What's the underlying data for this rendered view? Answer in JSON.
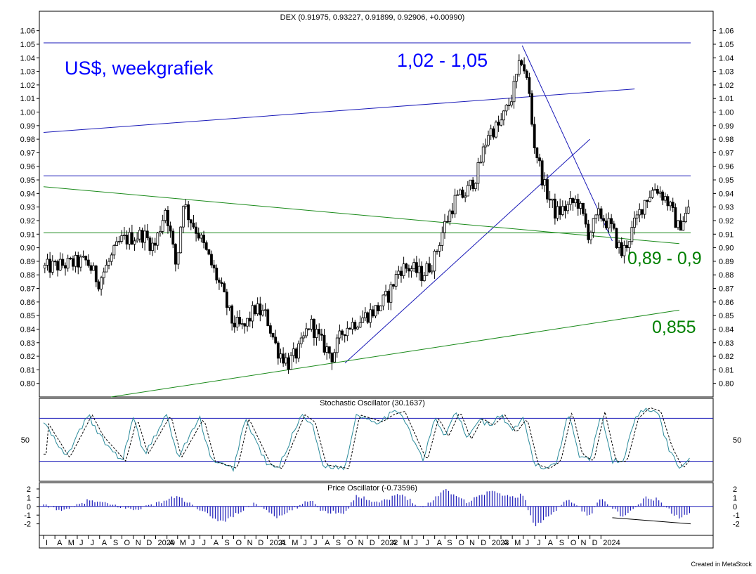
{
  "chart_data": {
    "type": "candlestick",
    "title": "DEX (0.91975, 0.93227, 0.91899, 0.92906, +0.00990)",
    "ylim": [
      0.79,
      1.065
    ],
    "y_ticks": [
      "1.06",
      "1.05",
      "1.04",
      "1.03",
      "1.02",
      "1.01",
      "1.00",
      "0.99",
      "0.98",
      "0.97",
      "0.96",
      "0.95",
      "0.94",
      "0.93",
      "0.92",
      "0.91",
      "0.90",
      "0.89",
      "0.88",
      "0.87",
      "0.86",
      "0.85",
      "0.84",
      "0.83",
      "0.82",
      "0.81",
      "0.80"
    ],
    "x_ticks": [
      "I",
      "A",
      "M",
      "J",
      "J",
      "A",
      "S",
      "O",
      "N",
      "D",
      "2020",
      "A",
      "M",
      "J",
      "J",
      "A",
      "S",
      "O",
      "N",
      "D",
      "2021",
      "A",
      "M",
      "J",
      "J",
      "A",
      "S",
      "O",
      "N",
      "D",
      "2022",
      "A",
      "M",
      "J",
      "J",
      "A",
      "S",
      "O",
      "N",
      "D",
      "2023",
      "A",
      "M",
      "J",
      "J",
      "A",
      "S",
      "O",
      "N",
      "D",
      "2024"
    ],
    "x_range": [
      "2019-03",
      "2024-01"
    ],
    "price_anchors": [
      {
        "t": "2019-03",
        "v": 0.885
      },
      {
        "t": "2019-07",
        "v": 0.89
      },
      {
        "t": "2019-08",
        "v": 0.875
      },
      {
        "t": "2019-10",
        "v": 0.905
      },
      {
        "t": "2019-12",
        "v": 0.91
      },
      {
        "t": "2020-01",
        "v": 0.9
      },
      {
        "t": "2020-02",
        "v": 0.93
      },
      {
        "t": "2020-03",
        "v": 0.885
      },
      {
        "t": "2020-03-20",
        "v": 0.935
      },
      {
        "t": "2020-04",
        "v": 0.925
      },
      {
        "t": "2020-05",
        "v": 0.91
      },
      {
        "t": "2020-06",
        "v": 0.89
      },
      {
        "t": "2020-07",
        "v": 0.87
      },
      {
        "t": "2020-08",
        "v": 0.845
      },
      {
        "t": "2020-09",
        "v": 0.84
      },
      {
        "t": "2020-10",
        "v": 0.855
      },
      {
        "t": "2020-11",
        "v": 0.85
      },
      {
        "t": "2020-12",
        "v": 0.825
      },
      {
        "t": "2021-01",
        "v": 0.815
      },
      {
        "t": "2021-02",
        "v": 0.825
      },
      {
        "t": "2021-03",
        "v": 0.845
      },
      {
        "t": "2021-04",
        "v": 0.83
      },
      {
        "t": "2021-05",
        "v": 0.82
      },
      {
        "t": "2021-06",
        "v": 0.84
      },
      {
        "t": "2021-07",
        "v": 0.845
      },
      {
        "t": "2021-08",
        "v": 0.85
      },
      {
        "t": "2021-09",
        "v": 0.855
      },
      {
        "t": "2021-10",
        "v": 0.865
      },
      {
        "t": "2021-11",
        "v": 0.885
      },
      {
        "t": "2021-12",
        "v": 0.885
      },
      {
        "t": "2022-01",
        "v": 0.88
      },
      {
        "t": "2022-02",
        "v": 0.89
      },
      {
        "t": "2022-03",
        "v": 0.915
      },
      {
        "t": "2022-04",
        "v": 0.935
      },
      {
        "t": "2022-05",
        "v": 0.94
      },
      {
        "t": "2022-06",
        "v": 0.955
      },
      {
        "t": "2022-07",
        "v": 0.985
      },
      {
        "t": "2022-08",
        "v": 0.99
      },
      {
        "t": "2022-09",
        "v": 1.01
      },
      {
        "t": "2022-10",
        "v": 1.04
      },
      {
        "t": "2022-10-20",
        "v": 1.015
      },
      {
        "t": "2022-11",
        "v": 0.98
      },
      {
        "t": "2022-12",
        "v": 0.945
      },
      {
        "t": "2023-01",
        "v": 0.925
      },
      {
        "t": "2023-02",
        "v": 0.93
      },
      {
        "t": "2023-03",
        "v": 0.935
      },
      {
        "t": "2023-04",
        "v": 0.91
      },
      {
        "t": "2023-05",
        "v": 0.925
      },
      {
        "t": "2023-06",
        "v": 0.915
      },
      {
        "t": "2023-07",
        "v": 0.895
      },
      {
        "t": "2023-08",
        "v": 0.915
      },
      {
        "t": "2023-09",
        "v": 0.935
      },
      {
        "t": "2023-10",
        "v": 0.945
      },
      {
        "t": "2023-11",
        "v": 0.935
      },
      {
        "t": "2023-12",
        "v": 0.915
      },
      {
        "t": "2024-01",
        "v": 0.929
      }
    ],
    "trend_lines": [
      {
        "color": "#1a1ab8",
        "from": {
          "t": "2019-03",
          "v": 0.985
        },
        "to": {
          "t": "2023-08",
          "v": 1.017
        }
      },
      {
        "color": "#1a1ab8",
        "from": {
          "t": "2019-03",
          "v": 0.953
        },
        "to": {
          "t": "2024-01",
          "v": 0.953
        }
      },
      {
        "color": "#1a1ab8",
        "from": {
          "t": "2019-03",
          "v": 1.051
        },
        "to": {
          "t": "2024-01",
          "v": 1.051
        }
      },
      {
        "color": "#1a1ab8",
        "from": {
          "t": "2022-09-28",
          "v": 1.049
        },
        "to": {
          "t": "2023-06",
          "v": 0.905
        }
      },
      {
        "color": "#1a1ab8",
        "from": {
          "t": "2021-06",
          "v": 0.815
        },
        "to": {
          "t": "2023-04",
          "v": 0.98
        }
      },
      {
        "color": "#1a8a1a",
        "from": {
          "t": "2019-03",
          "v": 0.945
        },
        "to": {
          "t": "2023-12",
          "v": 0.903
        }
      },
      {
        "color": "#1a8a1a",
        "from": {
          "t": "2019-03",
          "v": 0.911
        },
        "to": {
          "t": "2024-01",
          "v": 0.911
        }
      },
      {
        "color": "#1a8a1a",
        "from": {
          "t": "2019-09",
          "v": 0.79
        },
        "to": {
          "t": "2023-12",
          "v": 0.854
        }
      }
    ],
    "annotations": [
      {
        "text": "US$, weekgrafiek",
        "color": "#0000ff"
      },
      {
        "text": "1,02 - 1,05",
        "color": "#0000ff"
      },
      {
        "text": "0,89 - 0,9",
        "color": "#008000"
      },
      {
        "text": "0,855",
        "color": "#008000"
      }
    ],
    "stochastic": {
      "title": "Stochastic Oscillator (30.1637)",
      "tick_label": "50",
      "upper_level": 80,
      "lower_level": 20,
      "anchors": [
        {
          "t": "2019-03",
          "v": 75
        },
        {
          "t": "2019-05",
          "v": 25
        },
        {
          "t": "2019-07",
          "v": 85
        },
        {
          "t": "2019-08",
          "v": 55
        },
        {
          "t": "2019-10",
          "v": 20
        },
        {
          "t": "2019-11",
          "v": 80
        },
        {
          "t": "2019-12",
          "v": 30
        },
        {
          "t": "2020-02",
          "v": 85
        },
        {
          "t": "2020-03",
          "v": 25
        },
        {
          "t": "2020-05",
          "v": 80
        },
        {
          "t": "2020-06",
          "v": 20
        },
        {
          "t": "2020-08",
          "v": 10
        },
        {
          "t": "2020-09",
          "v": 80
        },
        {
          "t": "2020-11",
          "v": 15
        },
        {
          "t": "2020-12",
          "v": 10
        },
        {
          "t": "2021-02",
          "v": 85
        },
        {
          "t": "2021-03",
          "v": 75
        },
        {
          "t": "2021-04",
          "v": 15
        },
        {
          "t": "2021-06",
          "v": 10
        },
        {
          "t": "2021-07",
          "v": 85
        },
        {
          "t": "2021-09",
          "v": 75
        },
        {
          "t": "2021-10",
          "v": 85
        },
        {
          "t": "2021-11",
          "v": 90
        },
        {
          "t": "2022-01",
          "v": 20
        },
        {
          "t": "2022-02",
          "v": 80
        },
        {
          "t": "2022-03",
          "v": 55
        },
        {
          "t": "2022-04",
          "v": 90
        },
        {
          "t": "2022-05",
          "v": 50
        },
        {
          "t": "2022-06",
          "v": 80
        },
        {
          "t": "2022-07",
          "v": 70
        },
        {
          "t": "2022-08",
          "v": 85
        },
        {
          "t": "2022-09",
          "v": 60
        },
        {
          "t": "2022-10",
          "v": 80
        },
        {
          "t": "2022-11",
          "v": 15
        },
        {
          "t": "2022-12",
          "v": 10
        },
        {
          "t": "2023-01",
          "v": 20
        },
        {
          "t": "2023-02",
          "v": 90
        },
        {
          "t": "2023-03",
          "v": 30
        },
        {
          "t": "2023-04",
          "v": 20
        },
        {
          "t": "2023-05",
          "v": 90
        },
        {
          "t": "2023-06",
          "v": 20
        },
        {
          "t": "2023-07",
          "v": 20
        },
        {
          "t": "2023-08",
          "v": 80
        },
        {
          "t": "2023-09",
          "v": 95
        },
        {
          "t": "2023-10",
          "v": 90
        },
        {
          "t": "2023-11",
          "v": 40
        },
        {
          "t": "2023-12",
          "v": 10
        },
        {
          "t": "2024-01",
          "v": 30
        }
      ]
    },
    "price_oscillator": {
      "title": "Price Oscillator (-0.73596)",
      "y_ticks": [
        "2",
        "1",
        "0",
        "-1",
        "-2"
      ],
      "ylim": [
        -3,
        2.4
      ],
      "anchors": [
        {
          "t": "2019-03",
          "v": 0.1
        },
        {
          "t": "2019-05",
          "v": -0.5
        },
        {
          "t": "2019-07",
          "v": 0.7
        },
        {
          "t": "2019-09",
          "v": 0.2
        },
        {
          "t": "2019-11",
          "v": -0.4
        },
        {
          "t": "2020-01",
          "v": 0.3
        },
        {
          "t": "2020-03",
          "v": 1.2
        },
        {
          "t": "2020-05",
          "v": -0.5
        },
        {
          "t": "2020-07",
          "v": -1.8
        },
        {
          "t": "2020-09",
          "v": -0.3
        },
        {
          "t": "2020-10",
          "v": 0.4
        },
        {
          "t": "2020-12",
          "v": -1.3
        },
        {
          "t": "2021-01",
          "v": -0.6
        },
        {
          "t": "2021-03",
          "v": 0.8
        },
        {
          "t": "2021-04",
          "v": -0.6
        },
        {
          "t": "2021-06",
          "v": -0.7
        },
        {
          "t": "2021-07",
          "v": 1.2
        },
        {
          "t": "2021-09",
          "v": 0.5
        },
        {
          "t": "2021-11",
          "v": 1.4
        },
        {
          "t": "2022-01",
          "v": -0.2
        },
        {
          "t": "2022-03",
          "v": 2.0
        },
        {
          "t": "2022-05",
          "v": 0.5
        },
        {
          "t": "2022-07",
          "v": 1.8
        },
        {
          "t": "2022-09",
          "v": 1.0
        },
        {
          "t": "2022-10",
          "v": 1.4
        },
        {
          "t": "2022-11",
          "v": -2.5
        },
        {
          "t": "2022-12",
          "v": -1.2
        },
        {
          "t": "2023-01",
          "v": -0.3
        },
        {
          "t": "2023-02",
          "v": 0.9
        },
        {
          "t": "2023-04",
          "v": -1.2
        },
        {
          "t": "2023-05",
          "v": 1.2
        },
        {
          "t": "2023-07",
          "v": -1.4
        },
        {
          "t": "2023-09",
          "v": 1.0
        },
        {
          "t": "2023-10",
          "v": 0.8
        },
        {
          "t": "2023-12",
          "v": -1.4
        },
        {
          "t": "2024-01",
          "v": -0.7
        }
      ],
      "divergence_line": {
        "from": {
          "t": "2023-06",
          "v": -1.3
        },
        "to": {
          "t": "2024-01",
          "v": -2.0
        }
      }
    },
    "footer": "Created in MetaStock"
  }
}
